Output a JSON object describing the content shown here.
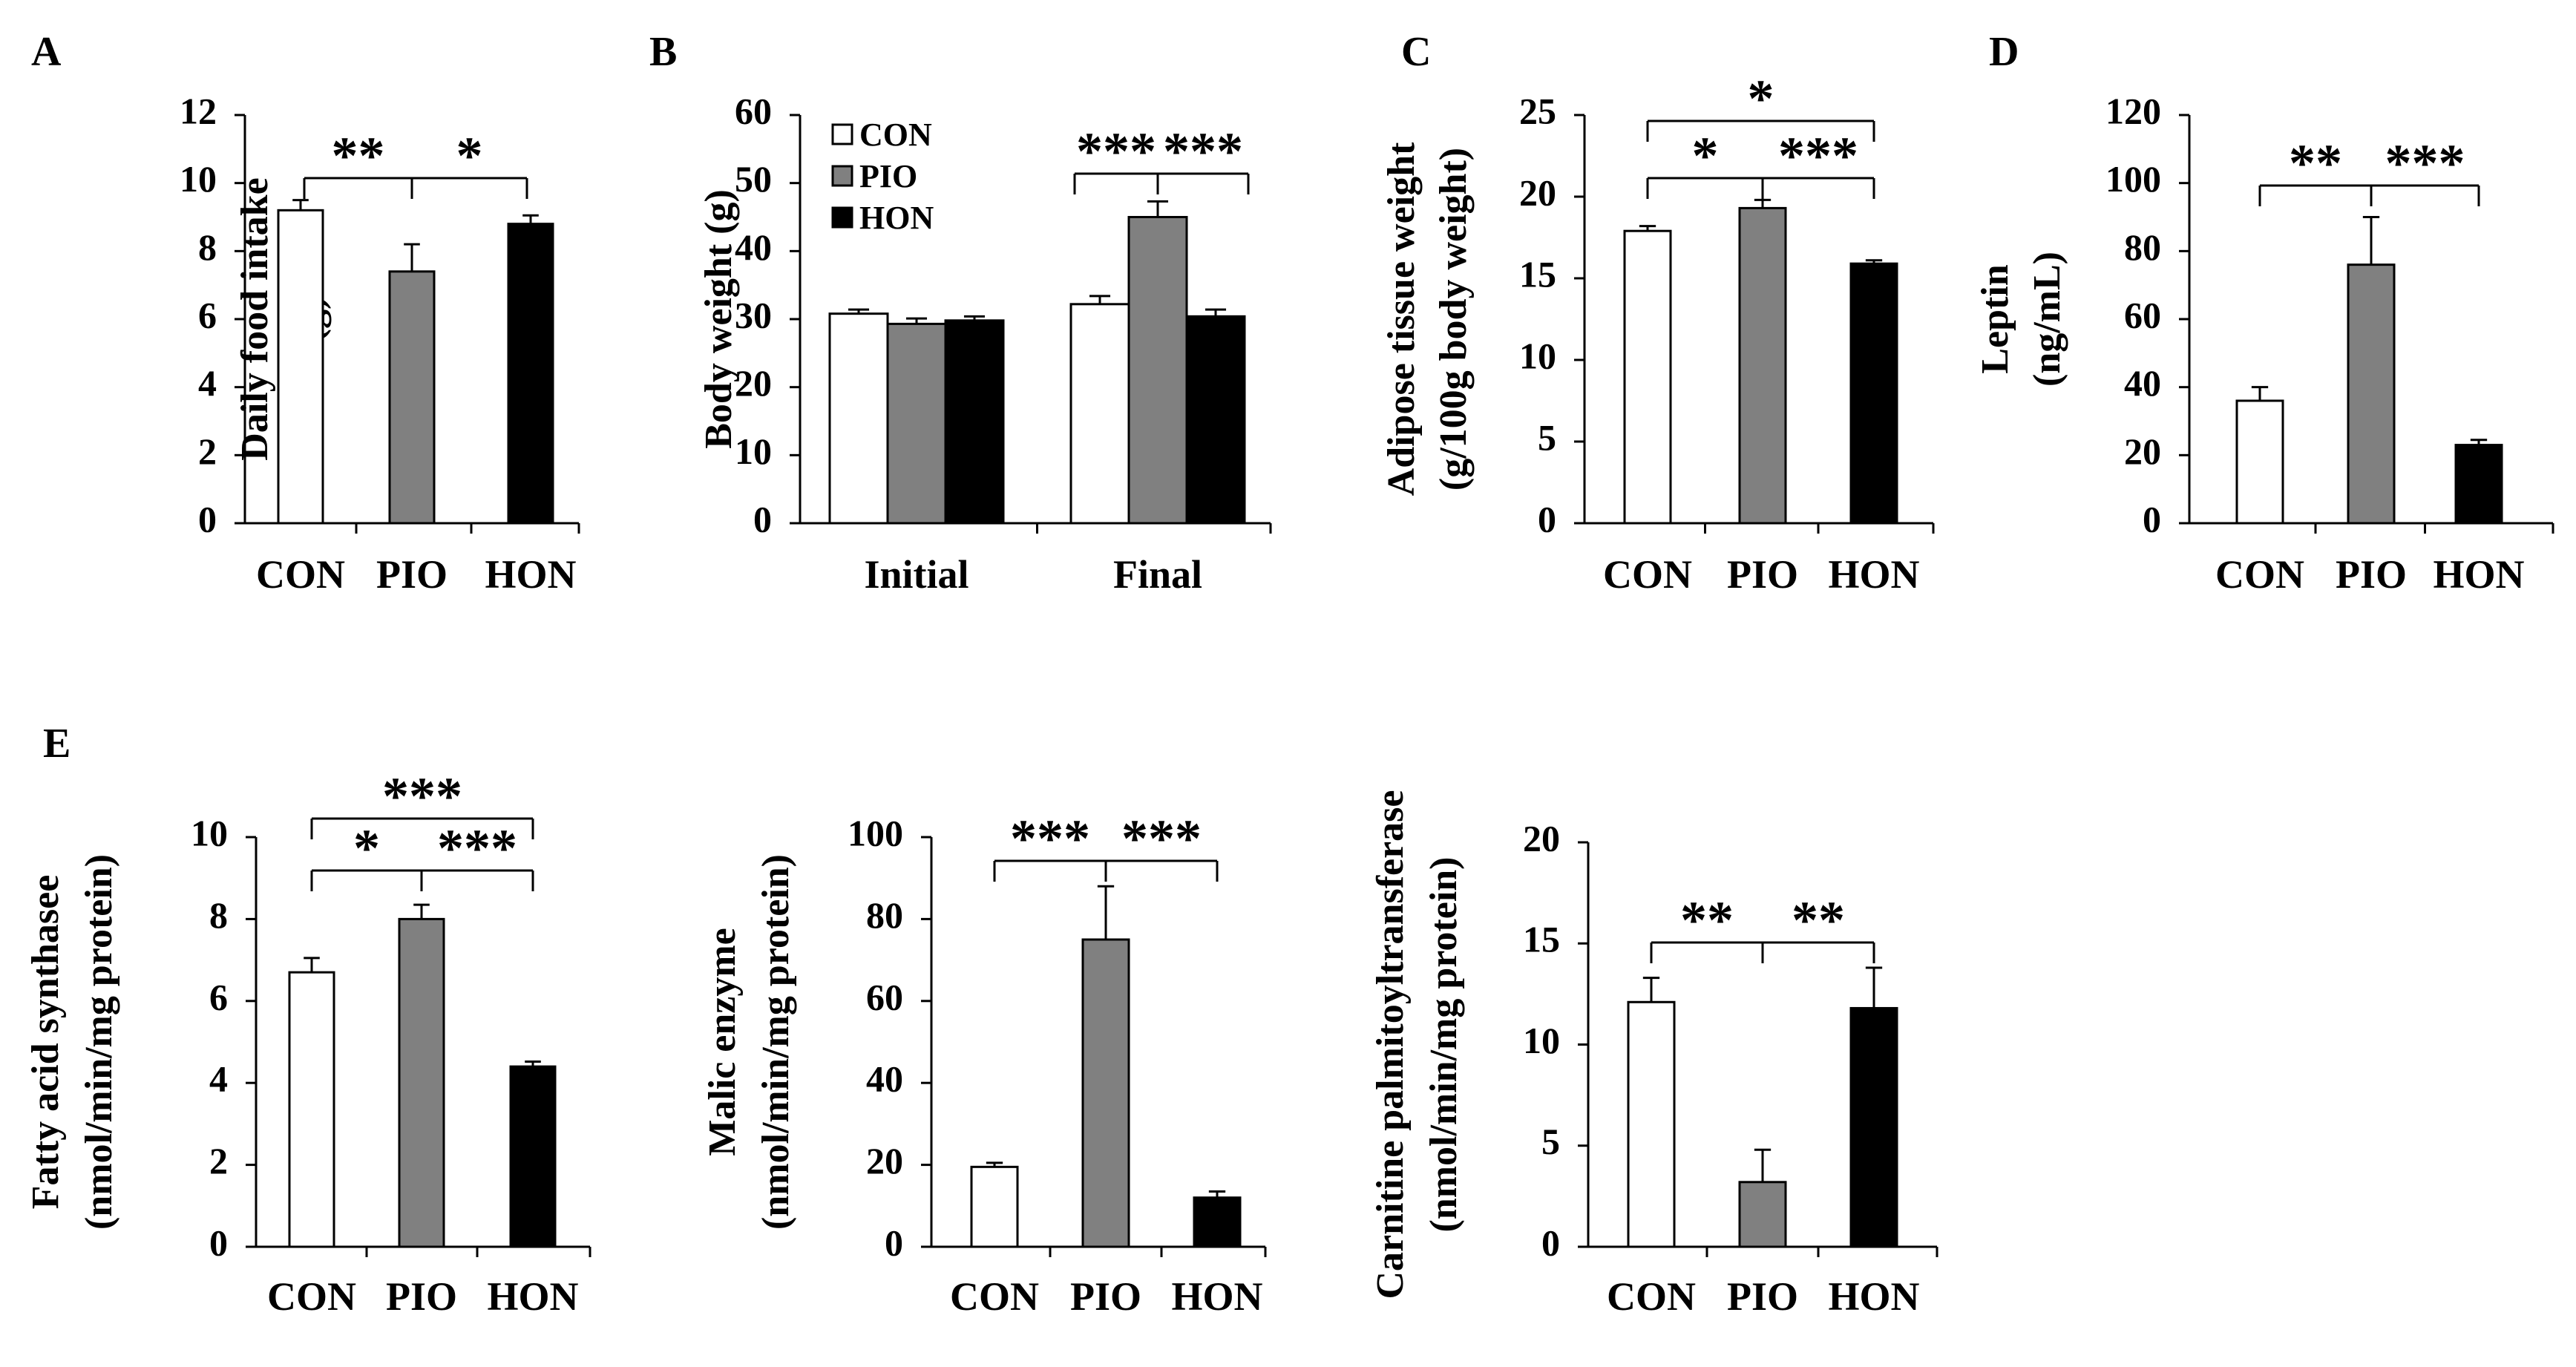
{
  "groups": [
    "CON",
    "PIO",
    "HON"
  ],
  "colors": {
    "CON": "#ffffff",
    "PIO": "#808080",
    "HON": "#000000",
    "stroke": "#000000"
  },
  "legend": [
    "CON",
    "PIO",
    "HON"
  ],
  "chart_data": [
    {
      "panel": "A",
      "type": "bar",
      "ylabel": [
        "Daily food intake",
        "(g)"
      ],
      "categories": [
        "CON",
        "PIO",
        "HON"
      ],
      "values": [
        9.2,
        7.4,
        8.8
      ],
      "errors": [
        0.3,
        0.8,
        0.25
      ],
      "ylim": [
        0,
        12
      ],
      "yticks": [
        0,
        2,
        4,
        6,
        8,
        10,
        12
      ],
      "significance": [
        {
          "from": 0,
          "to": 1,
          "label": "**"
        },
        {
          "from": 1,
          "to": 2,
          "label": "*"
        }
      ]
    },
    {
      "panel": "B",
      "type": "bar",
      "ylabel": [
        "Body weight (g)"
      ],
      "categories": [
        "Initial",
        "Final"
      ],
      "series": [
        {
          "name": "CON",
          "values": [
            30.8,
            32.2
          ],
          "errors": [
            0.6,
            1.2
          ]
        },
        {
          "name": "PIO",
          "values": [
            29.3,
            45.0
          ],
          "errors": [
            0.8,
            2.3
          ]
        },
        {
          "name": "HON",
          "values": [
            29.8,
            30.4
          ],
          "errors": [
            0.6,
            1.0
          ]
        }
      ],
      "ylim": [
        0,
        60
      ],
      "yticks": [
        0,
        10,
        20,
        30,
        40,
        50,
        60
      ],
      "significance": [
        {
          "from": "Final.CON",
          "to": "Final.PIO",
          "label": "***"
        },
        {
          "from": "Final.PIO",
          "to": "Final.HON",
          "label": "***"
        }
      ]
    },
    {
      "panel": "C",
      "type": "bar",
      "ylabel": [
        "Adipose tissue weight",
        "(g/100g body weight)"
      ],
      "categories": [
        "CON",
        "PIO",
        "HON"
      ],
      "values": [
        17.9,
        19.3,
        15.9
      ],
      "errors": [
        0.3,
        0.5,
        0.2
      ],
      "ylim": [
        0,
        25
      ],
      "yticks": [
        0,
        5,
        10,
        15,
        20,
        25
      ],
      "significance": [
        {
          "from": 0,
          "to": 1,
          "label": "*"
        },
        {
          "from": 1,
          "to": 2,
          "label": "***"
        },
        {
          "from": 0,
          "to": 2,
          "label": "*"
        }
      ]
    },
    {
      "panel": "D",
      "type": "bar",
      "ylabel": [
        "Leptin",
        "(ng/mL)"
      ],
      "categories": [
        "CON",
        "PIO",
        "HON"
      ],
      "values": [
        36,
        76,
        23
      ],
      "errors": [
        4,
        14,
        1.5
      ],
      "ylim": [
        0,
        120
      ],
      "yticks": [
        0,
        20,
        40,
        60,
        80,
        100,
        120
      ],
      "significance": [
        {
          "from": 0,
          "to": 1,
          "label": "**"
        },
        {
          "from": 1,
          "to": 2,
          "label": "***"
        }
      ]
    },
    {
      "panel": "E",
      "type": "bar",
      "ylabel": [
        "Fatty acid synthasee",
        "(nmol/min/mg protein)"
      ],
      "categories": [
        "CON",
        "PIO",
        "HON"
      ],
      "values": [
        6.7,
        8.0,
        4.4
      ],
      "errors": [
        0.35,
        0.35,
        0.12
      ],
      "ylim": [
        0,
        10
      ],
      "yticks": [
        0,
        2,
        4,
        6,
        8,
        10
      ],
      "significance": [
        {
          "from": 0,
          "to": 1,
          "label": "*"
        },
        {
          "from": 1,
          "to": 2,
          "label": "***"
        },
        {
          "from": 0,
          "to": 2,
          "label": "***"
        }
      ]
    },
    {
      "panel": "",
      "type": "bar",
      "ylabel": [
        "Malic enzyme",
        "(nmol/min/mg protein)"
      ],
      "categories": [
        "CON",
        "PIO",
        "HON"
      ],
      "values": [
        19.5,
        75,
        12
      ],
      "errors": [
        1,
        13,
        1.5
      ],
      "ylim": [
        0,
        100
      ],
      "yticks": [
        0,
        20,
        40,
        60,
        80,
        100
      ],
      "significance": [
        {
          "from": 0,
          "to": 1,
          "label": "***"
        },
        {
          "from": 1,
          "to": 2,
          "label": "***"
        }
      ]
    },
    {
      "panel": "",
      "type": "bar",
      "ylabel": [
        "Carnitine palmitoyltransferase",
        "(nmol/min/mg protein)"
      ],
      "categories": [
        "CON",
        "PIO",
        "HON"
      ],
      "values": [
        12.1,
        3.2,
        11.8
      ],
      "errors": [
        1.2,
        1.6,
        2.0
      ],
      "ylim": [
        0,
        20
      ],
      "yticks": [
        0,
        5,
        10,
        15,
        20
      ],
      "significance": [
        {
          "from": 0,
          "to": 1,
          "label": "**"
        },
        {
          "from": 1,
          "to": 2,
          "label": "**"
        }
      ]
    }
  ]
}
